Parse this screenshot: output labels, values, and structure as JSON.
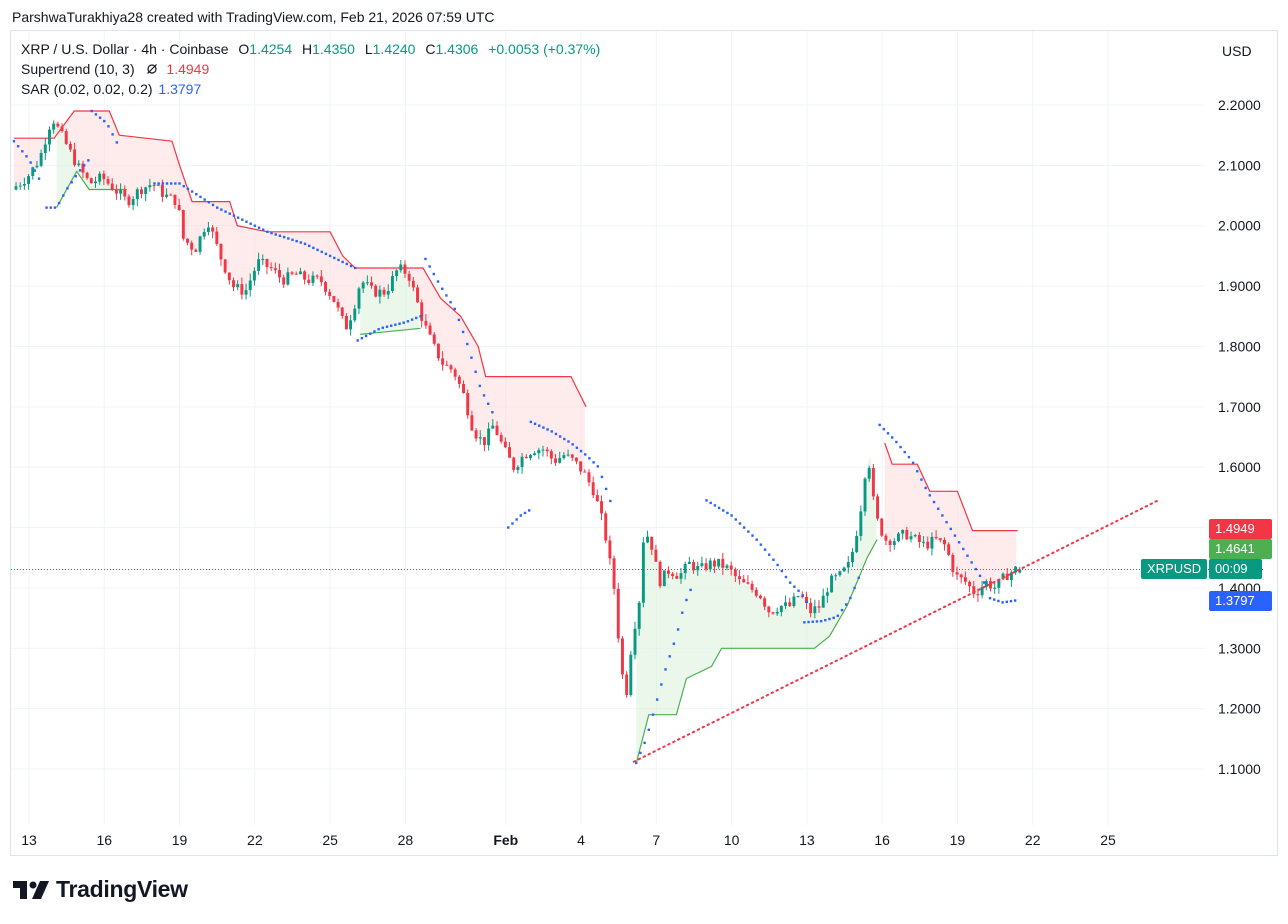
{
  "attribution": "ParshwaTurakhiya28 created with TradingView.com, Feb 21, 2026 07:59 UTC",
  "legend": {
    "symbol": "XRP / U.S. Dollar · 4h · Coinbase",
    "open_label": "O",
    "open": "1.4254",
    "high_label": "H",
    "high": "1.4350",
    "low_label": "L",
    "low": "1.4240",
    "close_label": "C",
    "close": "1.4306",
    "change": "+0.0053 (+0.37%)",
    "supertrend_label": "Supertrend (10, 3)",
    "supertrend_value": "1.4949",
    "sar_label": "SAR (0.02, 0.02, 0.2)",
    "sar_value": "1.3797"
  },
  "currency": "USD",
  "price_tags": {
    "supertrend_upper": "1.4949",
    "supertrend_lower": "1.4641",
    "symbol": "XRPUSD",
    "countdown": "00:09",
    "sar": "1.3797"
  },
  "colors": {
    "up": "#089981",
    "down": "#f23645",
    "sar": "#2962ff",
    "supertrend_up": "#4caf50",
    "supertrend_down": "#f23645",
    "trendline": "#f23645",
    "grid": "#f0f3fa"
  },
  "brand": {
    "logo_icon": "tradingview-logo-icon",
    "name": "TradingView"
  },
  "chart_data": {
    "type": "candlestick",
    "symbol": "XRPUSD",
    "timeframe": "4h",
    "y_ticks": [
      "2.2000",
      "2.1000",
      "2.0000",
      "1.9000",
      "1.8000",
      "1.7000",
      "1.6000",
      "1.5000",
      "1.4000",
      "1.3000",
      "1.2000",
      "1.1000"
    ],
    "y_tick_values": [
      2.2,
      2.1,
      2.0,
      1.9,
      1.8,
      1.7,
      1.6,
      1.5,
      1.4,
      1.3,
      1.2,
      1.1
    ],
    "ylim": [
      0.98,
      2.32
    ],
    "x_ticks": [
      {
        "label": "13",
        "day": -19
      },
      {
        "label": "16",
        "day": -16
      },
      {
        "label": "19",
        "day": -13
      },
      {
        "label": "22",
        "day": -10
      },
      {
        "label": "25",
        "day": -7
      },
      {
        "label": "28",
        "day": -4
      },
      {
        "label": "Feb",
        "day": 0,
        "bold": true
      },
      {
        "label": "4",
        "day": 3
      },
      {
        "label": "7",
        "day": 6
      },
      {
        "label": "10",
        "day": 9
      },
      {
        "label": "13",
        "day": 12
      },
      {
        "label": "16",
        "day": 15
      },
      {
        "label": "19",
        "day": 18
      },
      {
        "label": "22",
        "day": 21
      },
      {
        "label": "25",
        "day": 24
      }
    ],
    "xlim": [
      -19.7,
      27.0
    ],
    "price_path": [
      [
        -19.6,
        2.06
      ],
      [
        -19.0,
        2.08
      ],
      [
        -18.5,
        2.11
      ],
      [
        -18.0,
        2.18
      ],
      [
        -17.5,
        2.14
      ],
      [
        -17.0,
        2.1
      ],
      [
        -16.5,
        2.07
      ],
      [
        -16.0,
        2.08
      ],
      [
        -15.5,
        2.06
      ],
      [
        -15.0,
        2.04
      ],
      [
        -14.5,
        2.06
      ],
      [
        -14.0,
        2.07
      ],
      [
        -13.5,
        2.05
      ],
      [
        -13.0,
        2.04
      ],
      [
        -12.8,
        1.98
      ],
      [
        -12.3,
        1.96
      ],
      [
        -11.8,
        2.01
      ],
      [
        -11.3,
        1.95
      ],
      [
        -10.8,
        1.9
      ],
      [
        -10.3,
        1.89
      ],
      [
        -9.8,
        1.94
      ],
      [
        -9.3,
        1.93
      ],
      [
        -8.8,
        1.91
      ],
      [
        -8.3,
        1.92
      ],
      [
        -7.8,
        1.91
      ],
      [
        -7.3,
        1.91
      ],
      [
        -6.8,
        1.88
      ],
      [
        -6.3,
        1.83
      ],
      [
        -6.0,
        1.86
      ],
      [
        -5.7,
        1.91
      ],
      [
        -5.2,
        1.89
      ],
      [
        -4.7,
        1.89
      ],
      [
        -4.2,
        1.93
      ],
      [
        -3.8,
        1.92
      ],
      [
        -3.5,
        1.88
      ],
      [
        -3.2,
        1.84
      ],
      [
        -2.8,
        1.8
      ],
      [
        -2.4,
        1.77
      ],
      [
        -2.0,
        1.76
      ],
      [
        -1.6,
        1.72
      ],
      [
        -1.2,
        1.66
      ],
      [
        -0.8,
        1.64
      ],
      [
        -0.4,
        1.67
      ],
      [
        0.0,
        1.63
      ],
      [
        0.4,
        1.6
      ],
      [
        0.8,
        1.62
      ],
      [
        1.2,
        1.63
      ],
      [
        1.6,
        1.63
      ],
      [
        2.0,
        1.61
      ],
      [
        2.4,
        1.62
      ],
      [
        2.8,
        1.61
      ],
      [
        3.2,
        1.59
      ],
      [
        3.6,
        1.56
      ],
      [
        4.0,
        1.5
      ],
      [
        4.4,
        1.4
      ],
      [
        4.7,
        1.26
      ],
      [
        4.9,
        1.23
      ],
      [
        5.1,
        1.31
      ],
      [
        5.4,
        1.38
      ],
      [
        5.6,
        1.5
      ],
      [
        5.9,
        1.47
      ],
      [
        6.2,
        1.41
      ],
      [
        6.6,
        1.43
      ],
      [
        7.0,
        1.42
      ],
      [
        7.4,
        1.44
      ],
      [
        7.8,
        1.43
      ],
      [
        8.2,
        1.44
      ],
      [
        8.6,
        1.44
      ],
      [
        9.0,
        1.43
      ],
      [
        9.4,
        1.41
      ],
      [
        9.8,
        1.4
      ],
      [
        10.2,
        1.39
      ],
      [
        10.6,
        1.36
      ],
      [
        11.0,
        1.37
      ],
      [
        11.4,
        1.37
      ],
      [
        11.8,
        1.39
      ],
      [
        12.2,
        1.36
      ],
      [
        12.6,
        1.37
      ],
      [
        13.0,
        1.41
      ],
      [
        13.4,
        1.42
      ],
      [
        13.8,
        1.44
      ],
      [
        14.1,
        1.5
      ],
      [
        14.3,
        1.55
      ],
      [
        14.5,
        1.63
      ],
      [
        14.8,
        1.52
      ],
      [
        15.2,
        1.48
      ],
      [
        15.6,
        1.48
      ],
      [
        16.0,
        1.49
      ],
      [
        16.4,
        1.48
      ],
      [
        16.8,
        1.47
      ],
      [
        17.2,
        1.48
      ],
      [
        17.6,
        1.47
      ],
      [
        18.0,
        1.42
      ],
      [
        18.4,
        1.41
      ],
      [
        18.8,
        1.39
      ],
      [
        19.2,
        1.41
      ],
      [
        19.6,
        1.4
      ],
      [
        20.0,
        1.42
      ],
      [
        20.4,
        1.4306
      ]
    ],
    "supertrend_upper": [
      [
        -19.6,
        2.145
      ],
      [
        -18.0,
        2.145
      ],
      [
        -17.2,
        2.19
      ],
      [
        -15.8,
        2.19
      ],
      [
        -15.4,
        2.15
      ],
      [
        -13.3,
        2.14
      ],
      [
        -13.0,
        2.1
      ],
      [
        -12.5,
        2.04
      ],
      [
        -11.0,
        2.04
      ],
      [
        -10.7,
        2.0
      ],
      [
        -9.5,
        1.99
      ],
      [
        -7.0,
        1.99
      ],
      [
        -6.5,
        1.95
      ],
      [
        -6.0,
        1.93
      ],
      [
        -3.3,
        1.93
      ],
      [
        -2.6,
        1.88
      ],
      [
        -1.8,
        1.85
      ],
      [
        -1.1,
        1.8
      ],
      [
        -0.8,
        1.75
      ],
      [
        2.6,
        1.75
      ],
      [
        3.2,
        1.7
      ],
      [
        3.9,
        1.64
      ],
      [
        4.3,
        1.55
      ],
      [
        4.6,
        1.44
      ],
      [
        5.0,
        1.44
      ],
      [
        15.1,
        1.64
      ],
      [
        15.4,
        1.605
      ],
      [
        16.4,
        1.605
      ],
      [
        16.9,
        1.56
      ],
      [
        18.0,
        1.56
      ],
      [
        18.6,
        1.495
      ],
      [
        20.4,
        1.4949
      ]
    ],
    "supertrend_lower": [
      [
        -17.9,
        2.03
      ],
      [
        -17.1,
        2.09
      ],
      [
        -16.6,
        2.06
      ],
      [
        -15.1,
        2.06
      ],
      [
        -5.8,
        1.82
      ],
      [
        -3.4,
        1.83
      ],
      [
        5.2,
        1.11
      ],
      [
        5.7,
        1.19
      ],
      [
        6.8,
        1.19
      ],
      [
        7.2,
        1.25
      ],
      [
        8.2,
        1.27
      ],
      [
        8.6,
        1.3
      ],
      [
        12.3,
        1.3
      ],
      [
        12.9,
        1.32
      ],
      [
        13.6,
        1.37
      ],
      [
        14.0,
        1.41
      ],
      [
        14.4,
        1.45
      ],
      [
        14.8,
        1.48
      ]
    ],
    "sar_segments": [
      [
        [
          -19.6,
          2.14
        ],
        [
          -19.0,
          2.11
        ],
        [
          -18.5,
          2.07
        ]
      ],
      [
        [
          -18.3,
          2.03
        ],
        [
          -17.9,
          2.03
        ],
        [
          -17.5,
          2.06
        ],
        [
          -17.0,
          2.09
        ],
        [
          -16.6,
          2.11
        ]
      ],
      [
        [
          -16.5,
          2.19
        ],
        [
          -15.9,
          2.17
        ],
        [
          -15.4,
          2.13
        ]
      ],
      [
        [
          -14.0,
          2.07
        ],
        [
          -13.0,
          2.07
        ],
        [
          -11.5,
          2.03
        ],
        [
          -9.5,
          1.99
        ],
        [
          -8.0,
          1.97
        ],
        [
          -7.0,
          1.95
        ],
        [
          -6.0,
          1.93
        ]
      ],
      [
        [
          -5.9,
          1.81
        ],
        [
          -5.0,
          1.83
        ],
        [
          -4.0,
          1.84
        ],
        [
          -3.4,
          1.85
        ]
      ],
      [
        [
          -3.2,
          1.945
        ],
        [
          -2.6,
          1.9
        ],
        [
          -2.0,
          1.86
        ],
        [
          -1.5,
          1.8
        ],
        [
          -1.0,
          1.73
        ],
        [
          -0.4,
          1.68
        ]
      ],
      [
        [
          0.1,
          1.5
        ],
        [
          0.6,
          1.52
        ],
        [
          1.0,
          1.53
        ]
      ],
      [
        [
          1.0,
          1.675
        ],
        [
          1.8,
          1.66
        ],
        [
          2.6,
          1.64
        ],
        [
          3.2,
          1.62
        ],
        [
          3.7,
          1.6
        ],
        [
          4.2,
          1.54
        ]
      ],
      [
        [
          5.2,
          1.11
        ],
        [
          5.6,
          1.15
        ],
        [
          6.0,
          1.21
        ],
        [
          6.4,
          1.27
        ],
        [
          6.8,
          1.32
        ],
        [
          7.1,
          1.37
        ],
        [
          7.4,
          1.4
        ]
      ],
      [
        [
          8.0,
          1.545
        ],
        [
          9.0,
          1.52
        ],
        [
          10.0,
          1.48
        ],
        [
          10.8,
          1.44
        ],
        [
          11.3,
          1.41
        ],
        [
          11.8,
          1.39
        ],
        [
          12.1,
          1.37
        ]
      ],
      [
        [
          11.9,
          1.343
        ],
        [
          12.6,
          1.345
        ],
        [
          13.2,
          1.352
        ],
        [
          13.7,
          1.38
        ],
        [
          14.1,
          1.42
        ]
      ],
      [
        [
          14.9,
          1.67
        ],
        [
          15.5,
          1.645
        ],
        [
          16.2,
          1.61
        ],
        [
          16.8,
          1.56
        ],
        [
          17.4,
          1.52
        ],
        [
          18.0,
          1.48
        ],
        [
          18.6,
          1.44
        ],
        [
          19.2,
          1.4
        ]
      ],
      [
        [
          19.3,
          1.383
        ],
        [
          19.8,
          1.376
        ],
        [
          20.4,
          1.3797
        ]
      ]
    ],
    "trendline": [
      [
        5.1,
        1.112
      ],
      [
        26.0,
        1.545
      ]
    ],
    "last_price": 1.4306
  }
}
